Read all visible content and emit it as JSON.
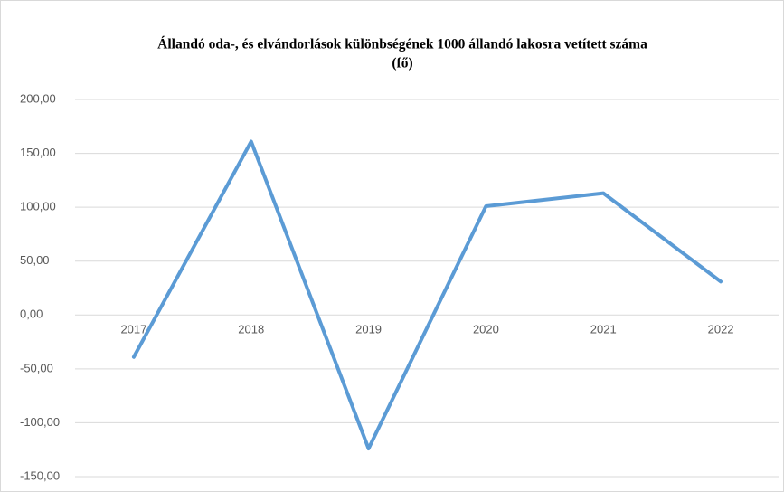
{
  "chart_data": {
    "type": "line",
    "title": [
      "Állandó oda-, és elvándorlások különbségének 1000 állandó lakosra vetített száma",
      "(fő)"
    ],
    "categories": [
      "2017",
      "2018",
      "2019",
      "2020",
      "2021",
      "2022"
    ],
    "values": [
      -39,
      161,
      -124,
      101,
      113,
      31
    ],
    "color": "#5b9bd5",
    "ylim": [
      -150,
      200
    ],
    "yticks": [
      {
        "value": -150,
        "label": "-150,00"
      },
      {
        "value": -100,
        "label": "-100,00"
      },
      {
        "value": -50,
        "label": "-50,00"
      },
      {
        "value": 0,
        "label": "0,00"
      },
      {
        "value": 50,
        "label": "50,00"
      },
      {
        "value": 100,
        "label": "100,00"
      },
      {
        "value": 150,
        "label": "150,00"
      },
      {
        "value": 200,
        "label": "200,00"
      }
    ],
    "grid": true
  }
}
